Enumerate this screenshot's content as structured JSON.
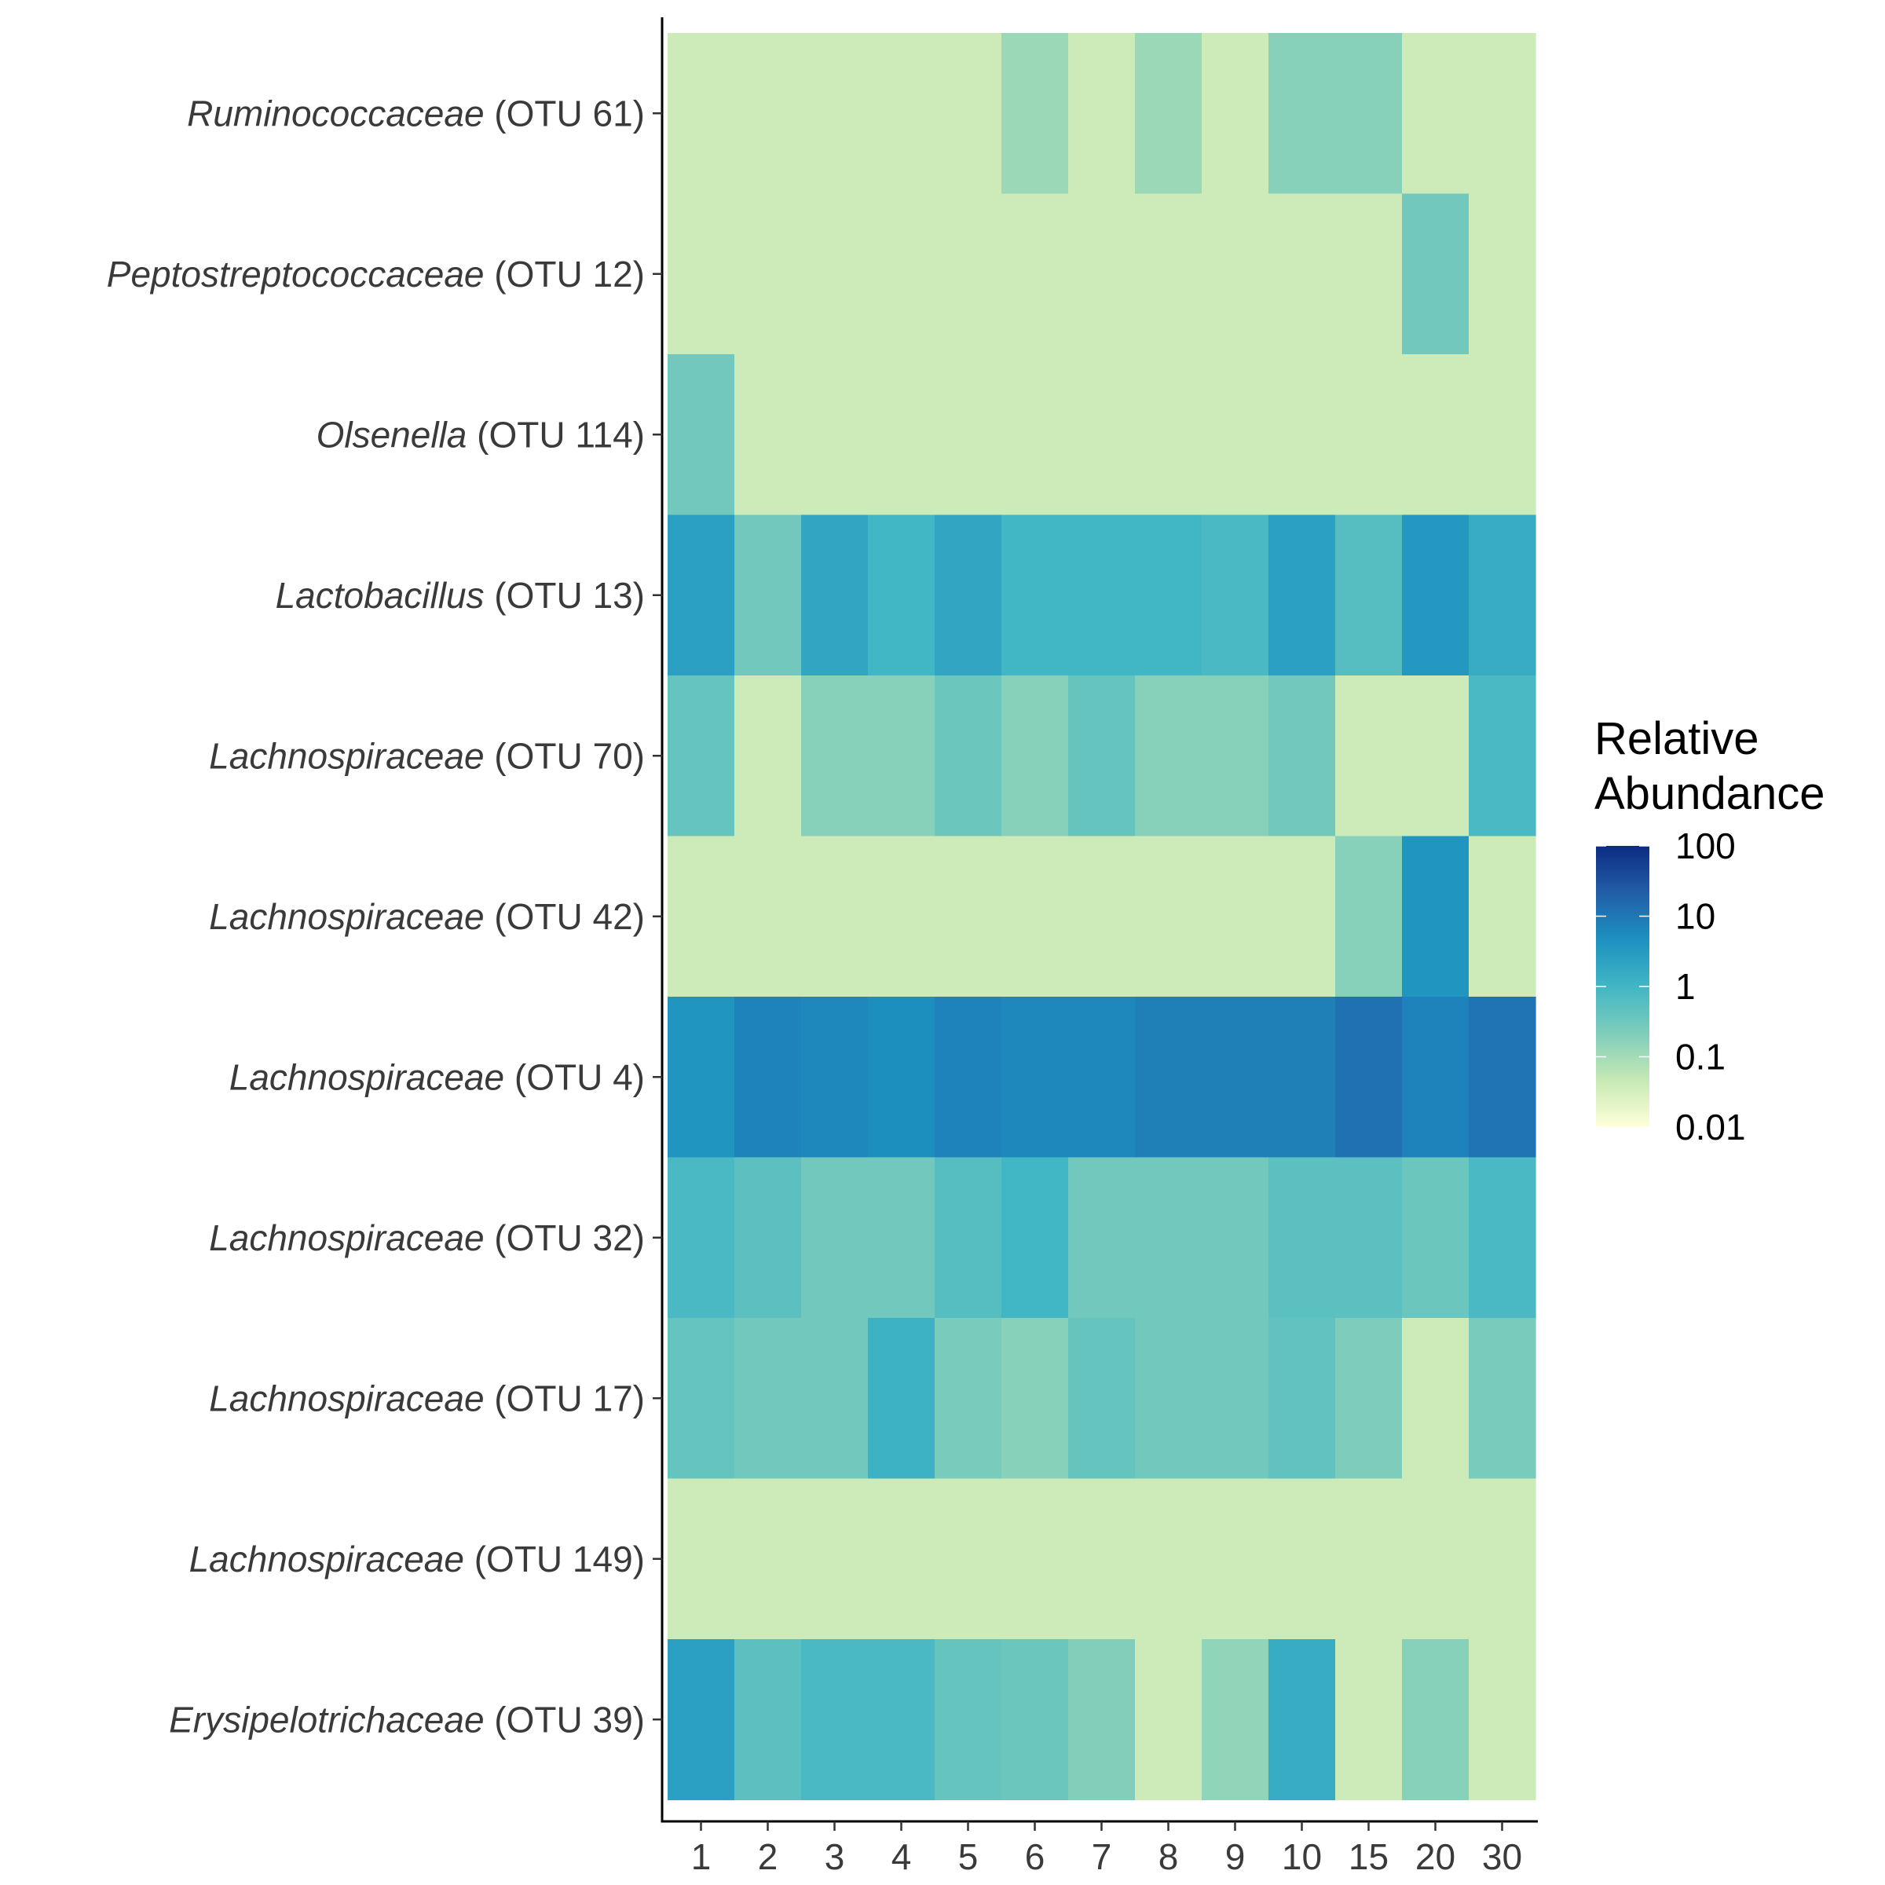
{
  "chart_data": {
    "type": "heatmap",
    "x_categories": [
      "1",
      "2",
      "3",
      "4",
      "5",
      "6",
      "7",
      "8",
      "9",
      "10",
      "15",
      "20",
      "30"
    ],
    "y_categories": [
      {
        "taxon": "Ruminococcaceae",
        "otu": "(OTU 61)"
      },
      {
        "taxon": "Peptostreptococcaceae",
        "otu": "(OTU 12)"
      },
      {
        "taxon": "Olsenella",
        "otu": "(OTU 114)"
      },
      {
        "taxon": "Lactobacillus",
        "otu": "(OTU 13)"
      },
      {
        "taxon": "Lachnospiraceae",
        "otu": "(OTU 70)"
      },
      {
        "taxon": "Lachnospiraceae",
        "otu": "(OTU 42)"
      },
      {
        "taxon": "Lachnospiraceae",
        "otu": "(OTU 4)"
      },
      {
        "taxon": "Lachnospiraceae",
        "otu": "(OTU 32)"
      },
      {
        "taxon": "Lachnospiraceae",
        "otu": "(OTU 17)"
      },
      {
        "taxon": "Lachnospiraceae",
        "otu": "(OTU 149)"
      },
      {
        "taxon": "Erysipelotrichaceae",
        "otu": "(OTU 39)"
      }
    ],
    "values": [
      [
        0.04,
        0.04,
        0.04,
        0.04,
        0.04,
        0.12,
        0.04,
        0.12,
        0.04,
        0.18,
        0.18,
        0.04,
        0.04
      ],
      [
        0.04,
        0.04,
        0.04,
        0.04,
        0.04,
        0.04,
        0.04,
        0.04,
        0.04,
        0.04,
        0.04,
        0.3,
        0.04
      ],
      [
        0.3,
        0.04,
        0.04,
        0.04,
        0.04,
        0.04,
        0.04,
        0.04,
        0.04,
        0.04,
        0.04,
        0.04,
        0.04
      ],
      [
        2.5,
        0.3,
        2.0,
        1.0,
        2.0,
        1.0,
        1.0,
        1.0,
        0.8,
        2.5,
        0.6,
        3.5,
        1.5
      ],
      [
        0.4,
        0.04,
        0.18,
        0.18,
        0.35,
        0.18,
        0.4,
        0.18,
        0.18,
        0.3,
        0.04,
        0.04,
        0.8
      ],
      [
        0.04,
        0.04,
        0.04,
        0.04,
        0.04,
        0.04,
        0.04,
        0.04,
        0.04,
        0.04,
        0.18,
        4.0,
        0.04
      ],
      [
        4.0,
        7.0,
        6.0,
        5.0,
        7.0,
        6.0,
        6.0,
        8.0,
        8.0,
        8.0,
        12.0,
        7.0,
        11.0
      ],
      [
        0.8,
        0.5,
        0.3,
        0.3,
        0.6,
        1.0,
        0.3,
        0.3,
        0.3,
        0.5,
        0.5,
        0.35,
        0.8
      ],
      [
        0.4,
        0.3,
        0.3,
        1.2,
        0.25,
        0.18,
        0.4,
        0.3,
        0.3,
        0.45,
        0.22,
        0.04,
        0.25
      ],
      [
        0.04,
        0.04,
        0.04,
        0.04,
        0.04,
        0.04,
        0.04,
        0.04,
        0.04,
        0.04,
        0.04,
        0.04,
        0.04
      ],
      [
        2.5,
        0.5,
        0.8,
        0.8,
        0.4,
        0.35,
        0.2,
        0.04,
        0.15,
        1.5,
        0.04,
        0.18,
        0.04
      ]
    ],
    "color_scale": {
      "type": "log",
      "domain": [
        0.01,
        100
      ],
      "stops": [
        "#ffffd9",
        "#c7e9b4",
        "#7fcdbb",
        "#41b6c4",
        "#1d91c0",
        "#225ea8",
        "#0c2c84"
      ]
    },
    "legend": {
      "title_lines": [
        "Relative",
        "Abundance"
      ],
      "ticks": [
        "100",
        "10",
        "1",
        "0.1",
        "0.01"
      ],
      "tick_values": [
        100,
        10,
        1,
        0.1,
        0.01
      ],
      "position": "right"
    },
    "title": "",
    "xlabel": "",
    "ylabel": ""
  }
}
